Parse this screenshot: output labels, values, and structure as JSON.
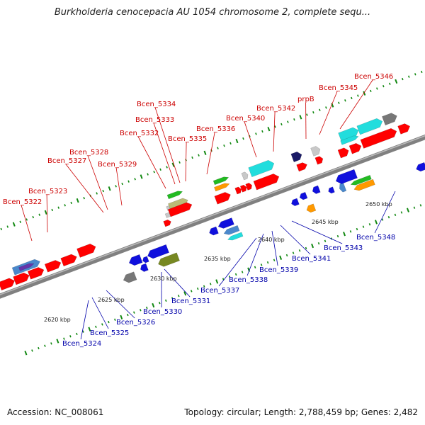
{
  "title": "Burkholderia cenocepacia AU 1054 chromosome 2, complete sequ...",
  "footer": {
    "accession": "Accession: NC_008061",
    "topology": "Topology: circular; Length: 2,788,459 bp; Genes: 2,482"
  },
  "colors": {
    "backbone": "#808080",
    "forward_label": "#cc0000",
    "reverse_label": "#0000aa",
    "red": "#ff0000",
    "blue": "#1010dd",
    "cyan": "#22dddd",
    "navy": "#1a1a66",
    "grey": "#777777",
    "lightgrey": "#c8c8c8",
    "green": "#22bb22",
    "orange": "#ff9900",
    "olive": "#778822",
    "steelblue": "#4a88cc",
    "purple": "#6633aa",
    "tan": "#bbbb77",
    "tick": "#118811"
  },
  "scale_labels": [
    "2620 kbp",
    "2625 kbp",
    "2630 kbp",
    "2635 kbp",
    "2640 kbp",
    "2645 kbp",
    "2650 kbp"
  ],
  "forward_genes": [
    "Bcen_5322",
    "Bcen_5323",
    "Bcen_5327",
    "Bcen_5328",
    "Bcen_5329",
    "Bcen_5332",
    "Bcen_5333",
    "Bcen_5334",
    "Bcen_5335",
    "Bcen_5336",
    "Bcen_5340",
    "Bcen_5342",
    "prpB",
    "Bcen_5345",
    "Bcen_5346"
  ],
  "reverse_genes": [
    "Bcen_5324",
    "Bcen_5325",
    "Bcen_5326",
    "Bcen_5330",
    "Bcen_5331",
    "Bcen_5337",
    "Bcen_5338",
    "Bcen_5339",
    "Bcen_5341",
    "Bcen_5343",
    "Bcen_5348"
  ]
}
